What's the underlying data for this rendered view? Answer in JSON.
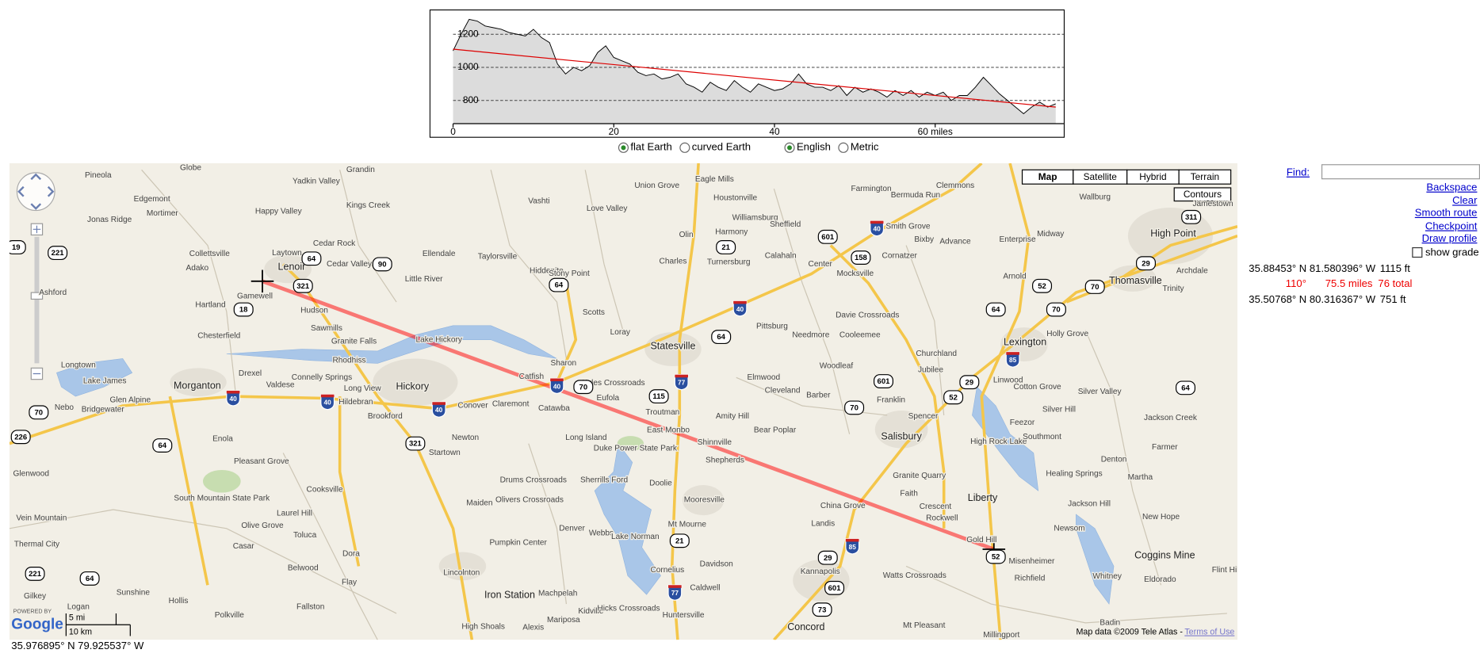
{
  "profile": {
    "y_unit": "ft",
    "ylim": [
      660,
      1350
    ],
    "yticks": [
      800,
      1000,
      1200
    ],
    "xlim": [
      0,
      76
    ],
    "xticks": [
      0,
      20,
      40,
      {
        "value": 60,
        "label": "60 miles"
      }
    ],
    "miles": [
      0,
      1,
      2,
      3,
      4,
      5,
      6,
      7,
      8,
      9,
      10,
      11,
      12,
      13,
      14,
      15,
      16,
      17,
      18,
      19,
      20,
      21,
      22,
      23,
      24,
      25,
      26,
      27,
      28,
      29,
      30,
      31,
      32,
      33,
      34,
      35,
      36,
      37,
      38,
      39,
      40,
      41,
      42,
      43,
      44,
      45,
      46,
      47,
      48,
      49,
      50,
      51,
      52,
      53,
      54,
      55,
      56,
      57,
      58,
      59,
      60,
      61,
      62,
      63,
      64,
      65,
      66,
      67,
      68,
      69,
      70,
      71,
      72,
      73,
      74,
      75
    ],
    "elevation": [
      1100,
      1200,
      1290,
      1280,
      1250,
      1240,
      1230,
      1210,
      1200,
      1190,
      1230,
      1180,
      1150,
      1020,
      960,
      1000,
      980,
      1010,
      1090,
      1130,
      1060,
      1040,
      1020,
      970,
      950,
      960,
      930,
      940,
      960,
      900,
      880,
      850,
      910,
      880,
      860,
      920,
      880,
      850,
      900,
      880,
      860,
      870,
      900,
      960,
      900,
      880,
      880,
      860,
      890,
      830,
      880,
      850,
      870,
      850,
      820,
      860,
      830,
      860,
      820,
      850,
      830,
      850,
      800,
      830,
      830,
      880,
      940,
      890,
      840,
      800,
      760,
      720,
      760,
      790,
      760,
      780
    ],
    "trend": [
      1110,
      760
    ]
  },
  "options": {
    "earth": [
      "flat Earth",
      "curved Earth"
    ],
    "units": [
      "English",
      "Metric"
    ]
  },
  "map": {
    "types": [
      "Map",
      "Satellite",
      "Hybrid",
      "Terrain"
    ],
    "contours": "Contours",
    "places": [
      "Globe",
      "Yadkin Valley",
      "Grandin",
      "Union Grove",
      "Eagle Mills",
      "Pineola",
      "Edgemont",
      "Kings Creek",
      "Vashti",
      "Love Valley",
      "Houstonville",
      "Farmington",
      "Clemmons",
      "Bermuda Run",
      "Mortimer",
      "Jonas Ridge",
      "Happy Valley",
      "Williamsburg",
      "Sheffield",
      "Olin",
      "Harmony",
      "Smith Grove",
      "Cedar Rock",
      "Collettsville",
      "Laytown",
      "Ellendale",
      "Taylorsville",
      "Charles",
      "Turnersburg",
      "Calahaln",
      "Cornatzer",
      "Advance",
      "Bixby",
      "Enterprise",
      "High Point",
      "Wallburg",
      "Jamestown",
      "Midway",
      "Adako",
      "Lenoir",
      "Cedar Valley",
      "Hiddenite",
      "Center",
      "Mocksville",
      "Arnold",
      "Thomasville",
      "Trinity",
      "Archdale",
      "Ashford",
      "Hartland",
      "Gamewell",
      "Little River",
      "Stony Point",
      "Scotts",
      "Hudson",
      "Loray",
      "Pittsburg",
      "Davie Crossroads",
      "Sawmills",
      "Granite Falls",
      "Lake Hickory",
      "Chesterfield",
      "Needmore",
      "Cooleemee",
      "Statesville",
      "Churchland",
      "Lexington",
      "Holly Grove",
      "Longtown",
      "Rhodhiss",
      "Sharon",
      "Woodleaf",
      "Jubilee",
      "Lake James",
      "Morganton",
      "Drexel",
      "Valdese",
      "Connelly Springs",
      "Hickory",
      "Catfish",
      "Kyles Crossroads",
      "Elmwood",
      "Linwood",
      "Cotton Grove",
      "Silver Valley",
      "Glen Alpine",
      "Long View",
      "Hildebran",
      "Conover",
      "Claremont",
      "Catawba",
      "Eufola",
      "Cleveland",
      "Barber",
      "Franklin",
      "Nebo",
      "Bridgewater",
      "Brookford",
      "Troutman",
      "Amity Hill",
      "Spencer",
      "Silver Hill",
      "Jackson Creek",
      "Feezor",
      "Newton",
      "Long Island",
      "East Monbo",
      "Shinnville",
      "Bear Poplar",
      "Salisbury",
      "High Rock Lake",
      "Southmont",
      "Farmer",
      "Enola",
      "Startown",
      "Duke Power State Park",
      "Shepherds",
      "Pleasant Grove",
      "Denton",
      "Healing Springs",
      "Martha",
      "Cooksville",
      "Drums Crossroads",
      "Sherrills Ford",
      "Doolie",
      "Granite Quarry",
      "South Mountain State Park",
      "Olivers Crossroads",
      "Mooresville",
      "Faith",
      "Liberty",
      "China Grove",
      "Crescent",
      "Maiden",
      "Jackson Hill",
      "Laurel Hill",
      "Landis",
      "Rockwell",
      "New Hope",
      "Vein Mountain",
      "Olive Grove",
      "Denver",
      "Webbs",
      "Lake Norman",
      "Mt Mourne",
      "Gold Hill",
      "Newsom",
      "Toluca",
      "Pumpkin Center",
      "Casar",
      "Dora",
      "Davidson",
      "Misenheimer",
      "Coggins Mine",
      "Flint Hill",
      "Lincolnton",
      "Cornelius",
      "Kannapolis",
      "Watts Crossroads",
      "Richfield",
      "Whitney",
      "Eldorado",
      "Sunshine",
      "Belwood",
      "Flay",
      "Iron Station",
      "Machpelah",
      "Caldwell",
      "Hollis",
      "Fallston",
      "Kidville",
      "Hicks Crossroads",
      "Huntersville",
      "Badin",
      "Polkville",
      "Logan",
      "Mariposa",
      "High Shoals",
      "Alexis",
      "Concord",
      "Mt Pleasant",
      "Millingport",
      "Gilkey",
      "Thermal City",
      "Glenwood"
    ],
    "shields": [
      "64",
      "221",
      "19",
      "321",
      "90",
      "18",
      "64",
      "601",
      "158",
      "21",
      "64",
      "70",
      "115",
      "601",
      "70",
      "52",
      "29",
      "64",
      "52",
      "70",
      "70",
      "29",
      "311",
      "64",
      "226",
      "70",
      "64",
      "321",
      "221",
      "64",
      "21",
      "29",
      "601",
      "73",
      "52"
    ],
    "interstates": [
      "40",
      "40",
      "40",
      "40",
      "40",
      "40",
      "77",
      "85",
      "85",
      "77"
    ],
    "scale": [
      "5 mi",
      "10 km"
    ],
    "powered_by": "POWERED BY",
    "logo": "Google",
    "attribution": "Map data ©2009 Tele Atlas - ",
    "terms": "Terms of Use"
  },
  "panel": {
    "find": "Find:",
    "links": [
      "Backspace",
      "Clear",
      "Smooth route",
      "Checkpoint",
      "Draw profile"
    ],
    "show_grade": "show grade",
    "start": {
      "coords": "35.88453° N 81.580396° W",
      "elevation": "1115 ft"
    },
    "segment": {
      "bearing": "110°",
      "distance": "75.5 miles",
      "total": "76 total"
    },
    "end": {
      "coords": "35.50768° N 80.316367° W",
      "elevation": "751 ft"
    }
  },
  "cursor": "35.976895° N 79.925537° W"
}
